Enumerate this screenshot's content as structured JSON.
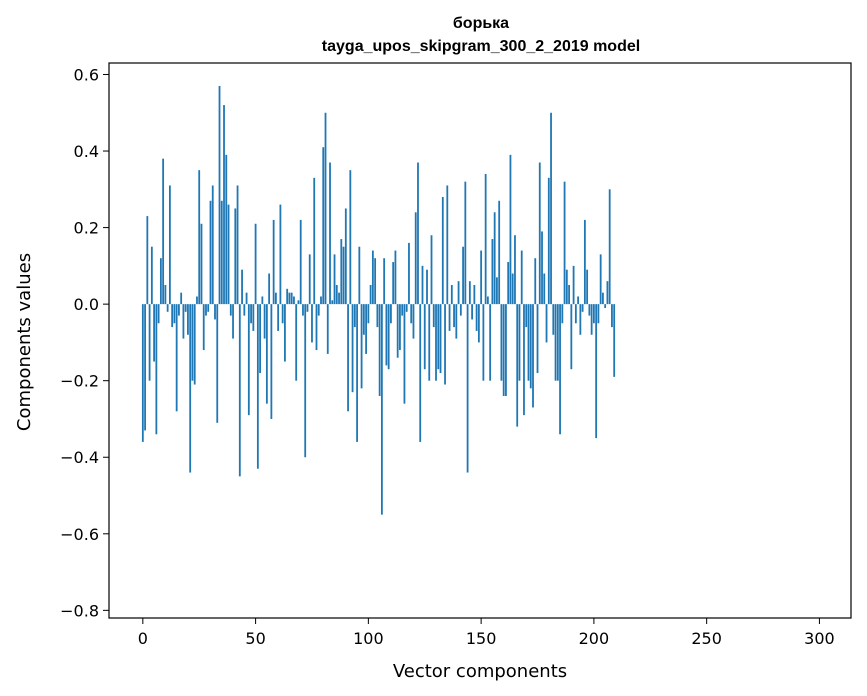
{
  "chart_data": {
    "type": "bar",
    "title": "борька",
    "subtitle": "tayga_upos_skipgram_300_2_2019 model",
    "xlabel": "Vector components",
    "ylabel": "Components values",
    "xlim": [
      -15,
      314
    ],
    "ylim": [
      -0.82,
      0.63
    ],
    "xticks": [
      0,
      50,
      100,
      150,
      200,
      250,
      300
    ],
    "yticks": [
      -0.8,
      -0.6,
      -0.4,
      -0.2,
      0.0,
      0.2,
      0.4,
      0.6
    ],
    "ytick_labels": [
      "−0.8",
      "−0.6",
      "−0.4",
      "−0.2",
      "0.0",
      "0.2",
      "0.4",
      "0.6"
    ],
    "xtick_labels": [
      "0",
      "50",
      "100",
      "150",
      "200",
      "250",
      "300"
    ],
    "bar_color": "#1f77b4",
    "grid": false,
    "values": [
      -0.36,
      -0.33,
      0.23,
      -0.2,
      0.15,
      -0.15,
      -0.34,
      -0.05,
      0.12,
      0.38,
      0.05,
      -0.02,
      0.31,
      -0.06,
      -0.05,
      -0.28,
      -0.03,
      0.03,
      -0.09,
      -0.02,
      -0.08,
      -0.44,
      -0.2,
      -0.21,
      0.02,
      0.35,
      0.21,
      -0.12,
      -0.03,
      -0.02,
      0.27,
      0.31,
      -0.04,
      -0.31,
      0.57,
      0.27,
      0.52,
      0.39,
      0.26,
      -0.03,
      -0.09,
      0.25,
      0.31,
      -0.45,
      0.09,
      -0.03,
      0.03,
      -0.29,
      -0.05,
      -0.07,
      0.21,
      -0.43,
      -0.18,
      0.02,
      -0.09,
      -0.26,
      0.08,
      -0.3,
      0.22,
      0.03,
      -0.07,
      0.26,
      -0.05,
      -0.15,
      0.04,
      0.03,
      0.03,
      0.02,
      -0.2,
      0.01,
      0.22,
      -0.03,
      -0.4,
      -0.02,
      0.13,
      -0.1,
      0.33,
      -0.12,
      -0.03,
      0.02,
      0.41,
      0.5,
      -0.13,
      0.37,
      0.01,
      0.13,
      0.05,
      0.03,
      0.17,
      0.15,
      0.25,
      -0.28,
      0.35,
      -0.23,
      -0.06,
      -0.36,
      0.15,
      -0.22,
      -0.08,
      -0.13,
      -0.05,
      0.05,
      0.14,
      0.12,
      -0.06,
      -0.24,
      -0.55,
      0.12,
      -0.16,
      -0.17,
      -0.05,
      0.11,
      0.14,
      -0.14,
      -0.12,
      -0.03,
      -0.26,
      -0.02,
      0.16,
      -0.05,
      -0.09,
      0.24,
      0.37,
      -0.36,
      0.1,
      -0.17,
      0.09,
      -0.2,
      0.18,
      -0.06,
      -0.2,
      -0.17,
      -0.18,
      0.28,
      -0.21,
      0.31,
      -0.07,
      0.05,
      -0.06,
      -0.09,
      0.06,
      -0.03,
      0.15,
      0.32,
      -0.44,
      0.06,
      -0.04,
      0.05,
      -0.07,
      -0.1,
      0.14,
      -0.2,
      0.34,
      0.02,
      -0.2,
      0.17,
      0.24,
      0.07,
      0.27,
      -0.2,
      -0.24,
      -0.24,
      0.11,
      0.39,
      0.08,
      0.18,
      -0.32,
      -0.2,
      0.14,
      -0.29,
      -0.06,
      -0.2,
      -0.22,
      -0.27,
      0.12,
      -0.18,
      0.37,
      0.19,
      0.08,
      -0.1,
      0.33,
      0.5,
      -0.08,
      -0.2,
      -0.2,
      -0.34,
      -0.05,
      0.32,
      0.09,
      0.05,
      -0.17,
      0.1,
      -0.05,
      0.02,
      -0.08,
      -0.02,
      0.22,
      0.09,
      -0.03,
      -0.08,
      -0.05,
      -0.35,
      -0.05,
      0.13,
      0.03,
      -0.01,
      0.06,
      0.3,
      -0.06,
      -0.19
    ]
  }
}
